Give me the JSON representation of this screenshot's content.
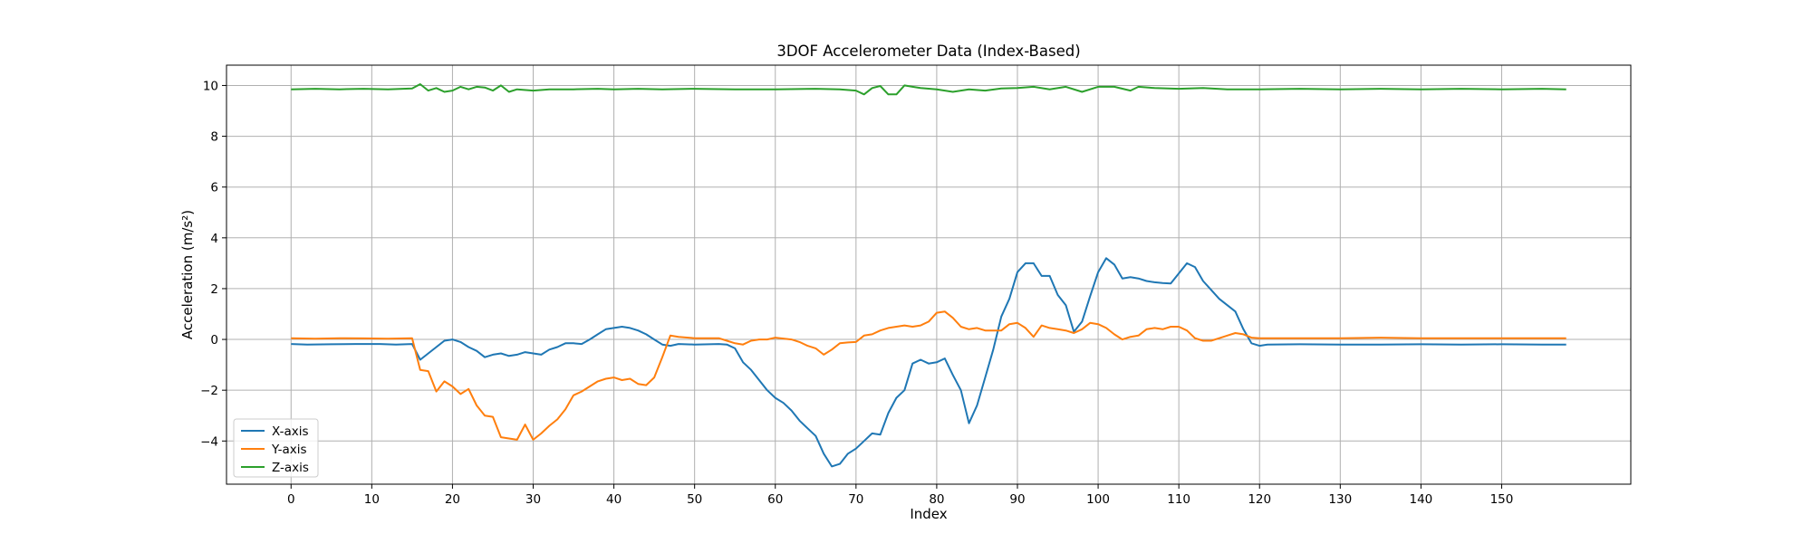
{
  "chart_data": {
    "type": "line",
    "title": "3DOF Accelerometer Data (Index-Based)",
    "xlabel": "Index",
    "ylabel": "Acceleration (m/s²)",
    "xlim": [
      -8,
      166
    ],
    "ylim": [
      -5.7,
      10.8
    ],
    "xticks": [
      0,
      10,
      20,
      30,
      40,
      50,
      60,
      70,
      80,
      90,
      100,
      110,
      120,
      130,
      140,
      150
    ],
    "yticks": [
      -4,
      -2,
      0,
      2,
      4,
      6,
      8,
      10
    ],
    "grid": true,
    "legend_position": "lower-left",
    "series": [
      {
        "name": "X-axis",
        "color": "#1f77b4",
        "points": [
          [
            0,
            -0.18
          ],
          [
            2,
            -0.2
          ],
          [
            5,
            -0.19
          ],
          [
            8,
            -0.18
          ],
          [
            11,
            -0.18
          ],
          [
            13,
            -0.2
          ],
          [
            15,
            -0.18
          ],
          [
            16,
            -0.8
          ],
          [
            17,
            -0.55
          ],
          [
            18,
            -0.3
          ],
          [
            19,
            -0.05
          ],
          [
            20,
            0.0
          ],
          [
            21,
            -0.1
          ],
          [
            22,
            -0.3
          ],
          [
            23,
            -0.45
          ],
          [
            24,
            -0.7
          ],
          [
            25,
            -0.6
          ],
          [
            26,
            -0.55
          ],
          [
            27,
            -0.65
          ],
          [
            28,
            -0.6
          ],
          [
            29,
            -0.5
          ],
          [
            30,
            -0.55
          ],
          [
            31,
            -0.6
          ],
          [
            32,
            -0.4
          ],
          [
            33,
            -0.3
          ],
          [
            34,
            -0.15
          ],
          [
            35,
            -0.15
          ],
          [
            36,
            -0.18
          ],
          [
            37,
            0.0
          ],
          [
            38,
            0.2
          ],
          [
            39,
            0.4
          ],
          [
            40,
            0.45
          ],
          [
            41,
            0.5
          ],
          [
            42,
            0.45
          ],
          [
            43,
            0.35
          ],
          [
            44,
            0.2
          ],
          [
            45,
            0.0
          ],
          [
            46,
            -0.2
          ],
          [
            47,
            -0.25
          ],
          [
            48,
            -0.18
          ],
          [
            50,
            -0.2
          ],
          [
            53,
            -0.18
          ],
          [
            54,
            -0.2
          ],
          [
            55,
            -0.35
          ],
          [
            56,
            -0.9
          ],
          [
            57,
            -1.2
          ],
          [
            58,
            -1.6
          ],
          [
            59,
            -2.0
          ],
          [
            60,
            -2.3
          ],
          [
            61,
            -2.5
          ],
          [
            62,
            -2.8
          ],
          [
            63,
            -3.2
          ],
          [
            64,
            -3.5
          ],
          [
            65,
            -3.8
          ],
          [
            66,
            -4.5
          ],
          [
            67,
            -5.0
          ],
          [
            68,
            -4.9
          ],
          [
            69,
            -4.5
          ],
          [
            70,
            -4.3
          ],
          [
            71,
            -4.0
          ],
          [
            72,
            -3.7
          ],
          [
            73,
            -3.75
          ],
          [
            74,
            -2.9
          ],
          [
            75,
            -2.3
          ],
          [
            76,
            -2.0
          ],
          [
            77,
            -0.95
          ],
          [
            78,
            -0.8
          ],
          [
            79,
            -0.95
          ],
          [
            80,
            -0.9
          ],
          [
            81,
            -0.75
          ],
          [
            82,
            -1.4
          ],
          [
            83,
            -2.0
          ],
          [
            84,
            -3.3
          ],
          [
            85,
            -2.6
          ],
          [
            86,
            -1.5
          ],
          [
            87,
            -0.4
          ],
          [
            88,
            0.9
          ],
          [
            89,
            1.6
          ],
          [
            90,
            2.65
          ],
          [
            91,
            3.0
          ],
          [
            92,
            3.0
          ],
          [
            93,
            2.5
          ],
          [
            94,
            2.5
          ],
          [
            95,
            1.75
          ],
          [
            96,
            1.35
          ],
          [
            97,
            0.3
          ],
          [
            98,
            0.7
          ],
          [
            99,
            1.7
          ],
          [
            100,
            2.65
          ],
          [
            101,
            3.2
          ],
          [
            102,
            2.95
          ],
          [
            103,
            2.4
          ],
          [
            104,
            2.45
          ],
          [
            105,
            2.4
          ],
          [
            106,
            2.3
          ],
          [
            107,
            2.25
          ],
          [
            108,
            2.22
          ],
          [
            109,
            2.2
          ],
          [
            110,
            2.6
          ],
          [
            111,
            3.0
          ],
          [
            112,
            2.85
          ],
          [
            113,
            2.3
          ],
          [
            114,
            1.95
          ],
          [
            115,
            1.6
          ],
          [
            116,
            1.35
          ],
          [
            117,
            1.1
          ],
          [
            118,
            0.4
          ],
          [
            119,
            -0.15
          ],
          [
            120,
            -0.25
          ],
          [
            121,
            -0.2
          ],
          [
            125,
            -0.19
          ],
          [
            130,
            -0.2
          ],
          [
            135,
            -0.2
          ],
          [
            140,
            -0.19
          ],
          [
            145,
            -0.2
          ],
          [
            150,
            -0.19
          ],
          [
            155,
            -0.2
          ],
          [
            158,
            -0.2
          ]
        ]
      },
      {
        "name": "Y-axis",
        "color": "#ff7f0e",
        "points": [
          [
            0,
            0.05
          ],
          [
            3,
            0.03
          ],
          [
            6,
            0.05
          ],
          [
            9,
            0.04
          ],
          [
            12,
            0.03
          ],
          [
            15,
            0.05
          ],
          [
            16,
            -1.2
          ],
          [
            17,
            -1.25
          ],
          [
            18,
            -2.05
          ],
          [
            19,
            -1.65
          ],
          [
            20,
            -1.85
          ],
          [
            21,
            -2.15
          ],
          [
            22,
            -1.95
          ],
          [
            23,
            -2.6
          ],
          [
            24,
            -3.0
          ],
          [
            25,
            -3.05
          ],
          [
            26,
            -3.85
          ],
          [
            27,
            -3.9
          ],
          [
            28,
            -3.95
          ],
          [
            29,
            -3.35
          ],
          [
            30,
            -3.95
          ],
          [
            31,
            -3.7
          ],
          [
            32,
            -3.4
          ],
          [
            33,
            -3.15
          ],
          [
            34,
            -2.75
          ],
          [
            35,
            -2.2
          ],
          [
            36,
            -2.05
          ],
          [
            37,
            -1.85
          ],
          [
            38,
            -1.65
          ],
          [
            39,
            -1.55
          ],
          [
            40,
            -1.5
          ],
          [
            41,
            -1.6
          ],
          [
            42,
            -1.55
          ],
          [
            43,
            -1.75
          ],
          [
            44,
            -1.8
          ],
          [
            45,
            -1.5
          ],
          [
            46,
            -0.7
          ],
          [
            47,
            0.15
          ],
          [
            48,
            0.1
          ],
          [
            50,
            0.05
          ],
          [
            53,
            0.05
          ],
          [
            54,
            -0.05
          ],
          [
            55,
            -0.15
          ],
          [
            56,
            -0.2
          ],
          [
            57,
            -0.05
          ],
          [
            58,
            0.0
          ],
          [
            59,
            0.0
          ],
          [
            60,
            0.07
          ],
          [
            62,
            0.0
          ],
          [
            63,
            -0.1
          ],
          [
            64,
            -0.25
          ],
          [
            65,
            -0.35
          ],
          [
            66,
            -0.6
          ],
          [
            67,
            -0.4
          ],
          [
            68,
            -0.15
          ],
          [
            69,
            -0.12
          ],
          [
            70,
            -0.1
          ],
          [
            71,
            0.15
          ],
          [
            72,
            0.2
          ],
          [
            73,
            0.35
          ],
          [
            74,
            0.45
          ],
          [
            75,
            0.5
          ],
          [
            76,
            0.55
          ],
          [
            77,
            0.5
          ],
          [
            78,
            0.55
          ],
          [
            79,
            0.7
          ],
          [
            80,
            1.05
          ],
          [
            81,
            1.1
          ],
          [
            82,
            0.85
          ],
          [
            83,
            0.5
          ],
          [
            84,
            0.4
          ],
          [
            85,
            0.45
          ],
          [
            86,
            0.35
          ],
          [
            87,
            0.35
          ],
          [
            88,
            0.35
          ],
          [
            89,
            0.6
          ],
          [
            90,
            0.65
          ],
          [
            91,
            0.45
          ],
          [
            92,
            0.1
          ],
          [
            93,
            0.55
          ],
          [
            94,
            0.45
          ],
          [
            95,
            0.4
          ],
          [
            96,
            0.35
          ],
          [
            97,
            0.25
          ],
          [
            98,
            0.4
          ],
          [
            99,
            0.65
          ],
          [
            100,
            0.6
          ],
          [
            101,
            0.45
          ],
          [
            102,
            0.2
          ],
          [
            103,
            0.0
          ],
          [
            104,
            0.1
          ],
          [
            105,
            0.15
          ],
          [
            106,
            0.4
          ],
          [
            107,
            0.45
          ],
          [
            108,
            0.4
          ],
          [
            109,
            0.5
          ],
          [
            110,
            0.5
          ],
          [
            111,
            0.35
          ],
          [
            112,
            0.05
          ],
          [
            113,
            -0.05
          ],
          [
            114,
            -0.05
          ],
          [
            115,
            0.05
          ],
          [
            116,
            0.15
          ],
          [
            117,
            0.25
          ],
          [
            118,
            0.2
          ],
          [
            119,
            0.07
          ],
          [
            120,
            0.05
          ],
          [
            125,
            0.05
          ],
          [
            130,
            0.05
          ],
          [
            135,
            0.07
          ],
          [
            140,
            0.05
          ],
          [
            145,
            0.05
          ],
          [
            150,
            0.05
          ],
          [
            155,
            0.05
          ],
          [
            158,
            0.05
          ]
        ]
      },
      {
        "name": "Z-axis",
        "color": "#2ca02c",
        "points": [
          [
            0,
            9.85
          ],
          [
            3,
            9.87
          ],
          [
            6,
            9.85
          ],
          [
            9,
            9.87
          ],
          [
            12,
            9.85
          ],
          [
            15,
            9.88
          ],
          [
            16,
            10.05
          ],
          [
            17,
            9.8
          ],
          [
            18,
            9.9
          ],
          [
            19,
            9.75
          ],
          [
            20,
            9.8
          ],
          [
            21,
            9.95
          ],
          [
            22,
            9.85
          ],
          [
            23,
            9.95
          ],
          [
            24,
            9.92
          ],
          [
            25,
            9.8
          ],
          [
            26,
            10.0
          ],
          [
            27,
            9.75
          ],
          [
            28,
            9.85
          ],
          [
            30,
            9.8
          ],
          [
            32,
            9.85
          ],
          [
            35,
            9.85
          ],
          [
            38,
            9.87
          ],
          [
            40,
            9.85
          ],
          [
            43,
            9.87
          ],
          [
            46,
            9.85
          ],
          [
            50,
            9.87
          ],
          [
            55,
            9.85
          ],
          [
            60,
            9.85
          ],
          [
            65,
            9.87
          ],
          [
            68,
            9.85
          ],
          [
            70,
            9.8
          ],
          [
            71,
            9.65
          ],
          [
            72,
            9.9
          ],
          [
            73,
            9.98
          ],
          [
            74,
            9.65
          ],
          [
            75,
            9.65
          ],
          [
            76,
            10.0
          ],
          [
            77,
            9.95
          ],
          [
            78,
            9.9
          ],
          [
            80,
            9.85
          ],
          [
            82,
            9.75
          ],
          [
            84,
            9.85
          ],
          [
            86,
            9.8
          ],
          [
            88,
            9.88
          ],
          [
            90,
            9.9
          ],
          [
            92,
            9.95
          ],
          [
            94,
            9.85
          ],
          [
            96,
            9.95
          ],
          [
            98,
            9.75
          ],
          [
            100,
            9.95
          ],
          [
            102,
            9.95
          ],
          [
            104,
            9.8
          ],
          [
            105,
            9.95
          ],
          [
            107,
            9.9
          ],
          [
            110,
            9.87
          ],
          [
            113,
            9.9
          ],
          [
            116,
            9.85
          ],
          [
            120,
            9.85
          ],
          [
            125,
            9.87
          ],
          [
            130,
            9.85
          ],
          [
            135,
            9.87
          ],
          [
            140,
            9.85
          ],
          [
            145,
            9.87
          ],
          [
            150,
            9.85
          ],
          [
            155,
            9.87
          ],
          [
            158,
            9.85
          ]
        ]
      }
    ]
  }
}
